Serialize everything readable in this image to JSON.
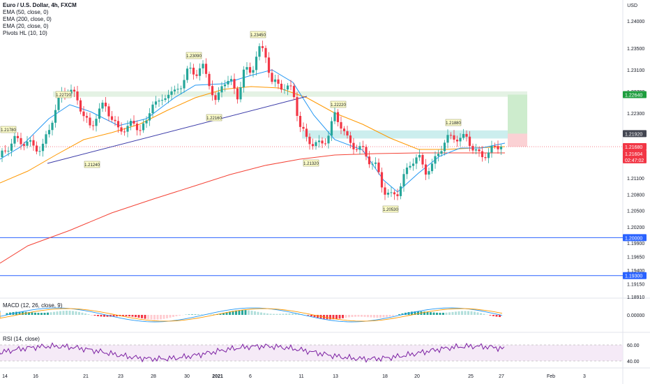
{
  "symbol_title": "Euro / U.S. Dollar, 4h, FXCM",
  "indicators": [
    "EMA (50, close, 0)",
    "EMA (200, close, 0)",
    "EMA (20, close, 0)",
    "Pivots HL (10, 10)"
  ],
  "macd_label": "MACD (12, 26, close, 9)",
  "rsi_label": "RSI (14, close)",
  "currency": "USD",
  "price_axis_labels": [
    "1.24000",
    "1.23500",
    "1.23100",
    "1.22700",
    "1.22300",
    "1.21900",
    "1.21500",
    "1.21100",
    "1.20800",
    "1.20500",
    "1.20200",
    "1.19900",
    "1.19650",
    "1.19400",
    "1.19150",
    "1.18910"
  ],
  "price_tags": [
    {
      "text": "1.22640",
      "color": "#1e9e3e",
      "fg": "#ffffff"
    },
    {
      "text": "1.21920",
      "color": "#434651",
      "fg": "#ffffff"
    },
    {
      "text": "1.21680",
      "color": "#f23645",
      "fg": "#ffffff"
    },
    {
      "text": "1.21604",
      "color": "#f23645",
      "fg": "#ffffff"
    },
    {
      "text": "02:47:02",
      "color": "#f23645",
      "fg": "#ffffff"
    },
    {
      "text": "1.20000",
      "color": "#2962ff",
      "fg": "#ffffff"
    },
    {
      "text": "1.19300",
      "color": "#2962ff",
      "fg": "#ffffff"
    }
  ],
  "macd_axis": [
    "0.00000"
  ],
  "rsi_axis": [
    "60.00",
    "40.00"
  ],
  "time_labels": [
    "14",
    "16",
    "21",
    "23",
    "28",
    "30",
    "2021",
    "6",
    "11",
    "13",
    "18",
    "20",
    "25",
    "27",
    "Feb",
    "3"
  ],
  "pivot_labels": [
    "1.21780",
    "1.22720",
    "1.21240",
    "1.23090",
    "1.22160",
    "1.23450",
    "1.21320",
    "1.22220",
    "1.20530",
    "1.21880"
  ],
  "colors": {
    "bull": "#26a69a",
    "bear": "#f23645",
    "ema20": "#2196f3",
    "ema50": "#ff9800",
    "ema200": "#f44336",
    "trend": "#3a3aa8",
    "hline": "#2962ff"
  }
}
